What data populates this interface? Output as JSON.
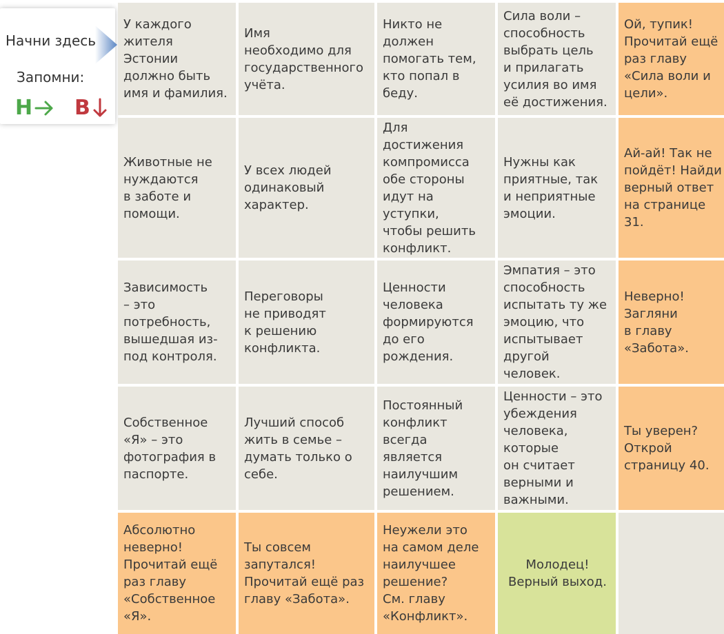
{
  "legend": {
    "start_label": "Начни здесь!",
    "remember_label": "Запомни:",
    "dir_h_letter": "Н",
    "dir_v_letter": "В",
    "colors": {
      "h": "#4da84a",
      "v": "#c0393f",
      "arrow": "#5b86c4"
    }
  },
  "colors": {
    "statement": "#e9e7df",
    "wrong": "#fbc68a",
    "correct": "#d8e39a"
  },
  "rows": [
    [
      {
        "type": "statement",
        "text": "У каждого\nжителя\nЭстонии\nдолжно быть\nимя и фамилия."
      },
      {
        "type": "statement",
        "text": "Имя\nнеобходимо для\nгосударственного\nучёта."
      },
      {
        "type": "statement",
        "text": "Никто не\nдолжен\nпомогать тем,\nкто попал в\nбеду."
      },
      {
        "type": "statement",
        "text": "Сила воли –\nспособность\nвыбрать цель\nи прилагать\nусилия во имя\nеё достижения."
      },
      {
        "type": "wrong",
        "text": "Ой, тупик!\nПрочитай ещё\nраз главу\n«Сила воли и\nцели»."
      }
    ],
    [
      {
        "type": "statement",
        "text": "Животные не\nнуждаются\nв заботе и\nпомощи."
      },
      {
        "type": "statement",
        "text": "У всех людей\nодинаковый\nхарактер."
      },
      {
        "type": "statement",
        "text": "Для\nдостижения\nкомпромисса\nобе стороны\nидут на\nуступки,\nчтобы решить\nконфликт."
      },
      {
        "type": "statement",
        "text": "Нужны как\nприятные, так\nи неприятные\nэмоции."
      },
      {
        "type": "wrong",
        "text": "Ай-ай! Так не\nпойдёт! Найди\nверный ответ\nна странице\n31."
      }
    ],
    [
      {
        "type": "statement",
        "text": "Зависимость\n– это\nпотребность,\nвышедшая из-\nпод контроля."
      },
      {
        "type": "statement",
        "text": "Переговоры\nне приводят\nк решению\nконфликта."
      },
      {
        "type": "statement",
        "text": "Ценности\nчеловека\nформируются\nдо его\nрождения."
      },
      {
        "type": "statement",
        "text": "Эмпатия – это\nспособность\nиспытать ту же\nэмоцию, что\nиспытывает\nдругой\nчеловек."
      },
      {
        "type": "wrong",
        "text": "Неверно!\nЗагляни\nв главу\n«Забота»."
      }
    ],
    [
      {
        "type": "statement",
        "text": "Собственное\n«Я» – это\nфотография в\nпаспорте."
      },
      {
        "type": "statement",
        "text": "Лучший способ\nжить в семье –\nдумать только о\nсебе."
      },
      {
        "type": "statement",
        "text": "Постоянный\nконфликт\nвсегда\nявляется\nнаилучшим\nрешением."
      },
      {
        "type": "statement",
        "text": "Ценности – это\nубеждения\nчеловека,\nкоторые\nон считает\nверными и\nважными."
      },
      {
        "type": "wrong",
        "text": "Ты уверен?\nОткрой\nстраницу 40."
      }
    ],
    [
      {
        "type": "wrong",
        "text": "Абсолютно\nневерно!\nПрочитай ещё\nраз главу\n«Собственное\n«Я»."
      },
      {
        "type": "wrong",
        "text": "Ты совсем\nзапутался!\nПрочитай ещё раз\nглаву «Забота»."
      },
      {
        "type": "wrong",
        "text": "Неужели это\nна самом деле\nнаилучшее\nрешение?\nСм. главу\n«Конфликт»."
      },
      {
        "type": "correct",
        "text": "Молодец!\nВерный выход."
      },
      {
        "type": "statement",
        "text": ""
      }
    ]
  ]
}
